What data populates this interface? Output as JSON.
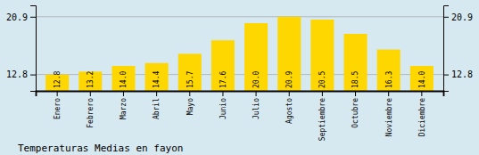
{
  "chart_data": {
    "type": "bar",
    "title": "Temperaturas Medias en fayon",
    "categories": [
      "Enero",
      "Febrero",
      "Marzo",
      "Abril",
      "Mayo",
      "Junio",
      "Julio",
      "Agosto",
      "Septiembre",
      "Octubre",
      "Noviembre",
      "Diciembre"
    ],
    "values": [
      12.8,
      13.2,
      14.0,
      14.4,
      15.7,
      17.6,
      20.0,
      20.9,
      20.5,
      18.5,
      16.3,
      14.0
    ],
    "value_labels": [
      "12.8",
      "13.2",
      "14.0",
      "14.4",
      "15.7",
      "17.6",
      "20.0",
      "20.9",
      "20.5",
      "18.5",
      "16.3",
      "14.0"
    ],
    "color": "#FFD700",
    "ylim": [
      10.5,
      22.5
    ],
    "yticks": [
      12.8,
      20.9
    ],
    "y2lim": [
      10.5,
      22.5
    ],
    "y2ticks": [
      12.8,
      20.9
    ],
    "grid": true,
    "data_labels": true
  }
}
